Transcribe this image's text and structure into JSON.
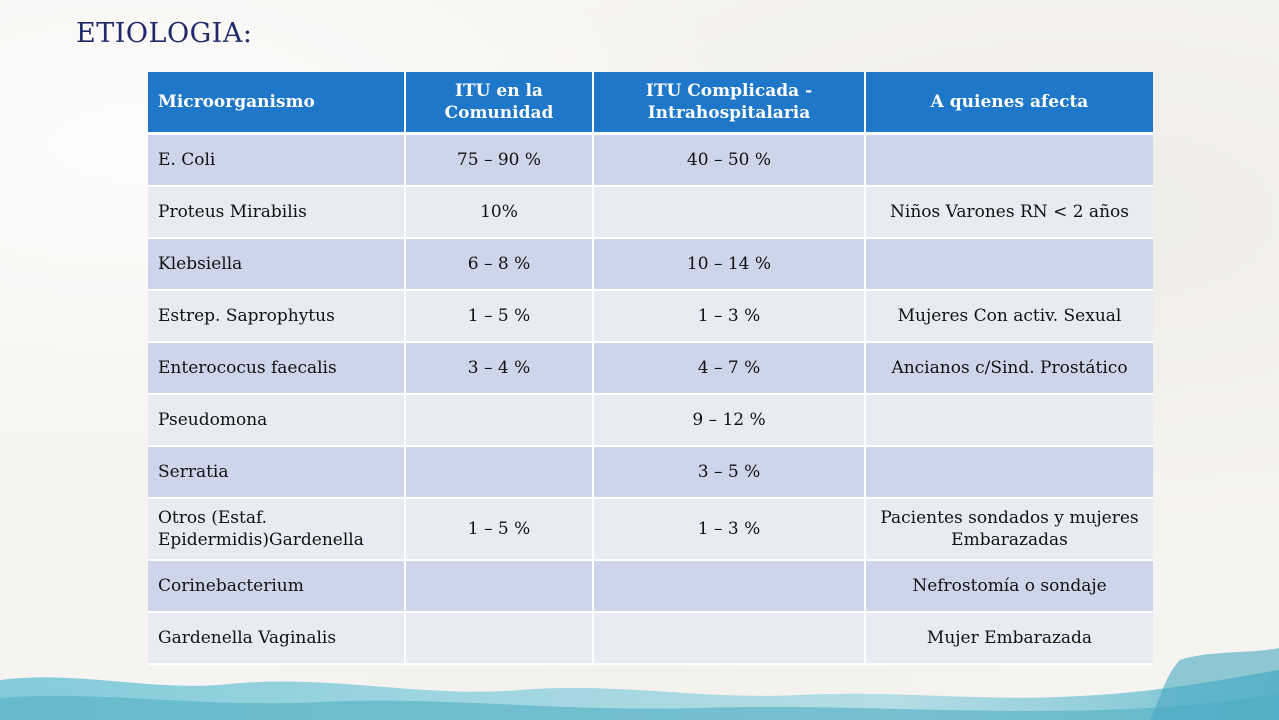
{
  "title": "ETIOLOGIA:",
  "colors": {
    "header_bg": "#1f77c9",
    "row_odd": "#cdd5ea",
    "row_even": "#e8ebf4",
    "title": "#1f2a6b"
  },
  "table": {
    "headers": [
      "Microorganismo",
      "ITU en la Comunidad",
      "ITU Complicada - Intrahospitalaria",
      "A quienes afecta"
    ],
    "rows": [
      [
        "E. Coli",
        "75 – 90 %",
        "40 – 50 %",
        ""
      ],
      [
        "Proteus Mirabilis",
        "10%",
        "",
        "Niños Varones RN < 2 años"
      ],
      [
        "Klebsiella",
        "6 – 8 %",
        "10 – 14 %",
        ""
      ],
      [
        "Estrep. Saprophytus",
        "1 – 5 %",
        "1 – 3 %",
        "Mujeres Con activ. Sexual"
      ],
      [
        "Enterococus faecalis",
        "3 – 4 %",
        "4 – 7 %",
        "Ancianos c/Sind. Prostático"
      ],
      [
        "Pseudomona",
        "",
        "9 – 12 %",
        ""
      ],
      [
        "Serratia",
        "",
        "3 – 5 %",
        ""
      ],
      [
        "Otros (Estaf. Epidermidis)Gardenella",
        "1 – 5 %",
        "1 – 3 %",
        "Pacientes sondados y mujeres Embarazadas"
      ],
      [
        "Corinebacterium",
        "",
        "",
        "Nefrostomía o sondaje"
      ],
      [
        "Gardenella Vaginalis",
        "",
        "",
        "Mujer Embarazada"
      ]
    ]
  }
}
